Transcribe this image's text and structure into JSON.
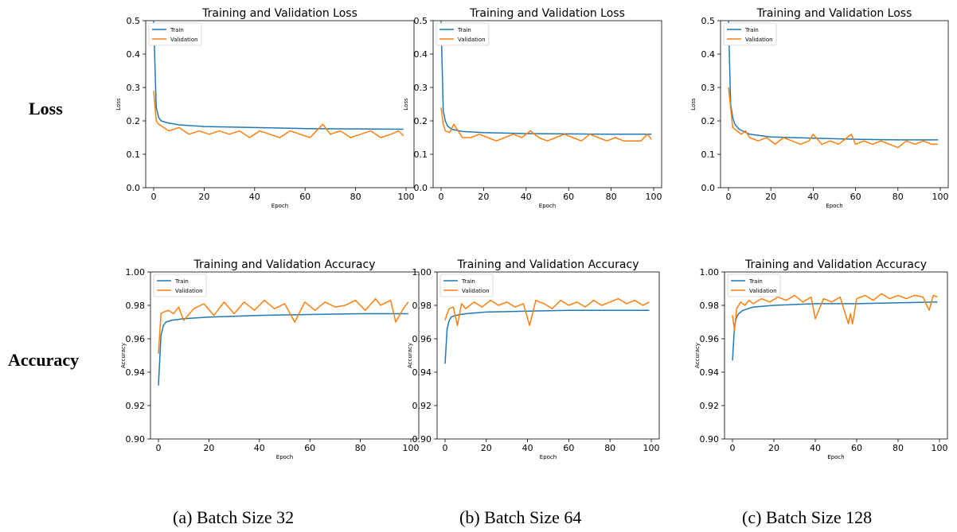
{
  "row_labels": {
    "loss": "Loss",
    "accuracy": "Accuracy"
  },
  "captions": [
    "(a) Batch Size 32",
    "(b) Batch Size 64",
    "(c) Batch Size 128"
  ],
  "colors": {
    "train": "#1f77b4",
    "validation": "#ff7f0e"
  },
  "chart_data": [
    {
      "type": "line",
      "metric": "loss",
      "batch": "32",
      "title": "Training and Validation Loss",
      "xlabel": "Epoch",
      "ylabel": "Loss",
      "xlim": [
        0,
        100
      ],
      "ylim": [
        0.0,
        0.5
      ],
      "xticks": [
        "0",
        "20",
        "40",
        "60",
        "80",
        "100"
      ],
      "yticks": [
        "0.0",
        "0.1",
        "0.2",
        "0.3",
        "0.4",
        "0.5"
      ],
      "legend": "top-left",
      "series": [
        {
          "name": "Train",
          "x": [
            0,
            1,
            2,
            3,
            5,
            10,
            20,
            40,
            60,
            80,
            99
          ],
          "y": [
            0.5,
            0.24,
            0.21,
            0.2,
            0.195,
            0.188,
            0.183,
            0.18,
            0.177,
            0.176,
            0.175
          ]
        },
        {
          "name": "Validation",
          "x": [
            0,
            1,
            2,
            4,
            6,
            10,
            14,
            18,
            22,
            26,
            30,
            34,
            38,
            42,
            46,
            50,
            54,
            58,
            62,
            67,
            70,
            74,
            78,
            82,
            86,
            90,
            94,
            97,
            99
          ],
          "y": [
            0.29,
            0.2,
            0.19,
            0.18,
            0.17,
            0.18,
            0.16,
            0.17,
            0.16,
            0.17,
            0.16,
            0.17,
            0.15,
            0.17,
            0.16,
            0.15,
            0.17,
            0.16,
            0.15,
            0.19,
            0.16,
            0.17,
            0.15,
            0.16,
            0.17,
            0.15,
            0.16,
            0.17,
            0.155
          ]
        }
      ]
    },
    {
      "type": "line",
      "metric": "loss",
      "batch": "64",
      "title": "Training and Validation Loss",
      "xlabel": "Epoch",
      "ylabel": "Loss",
      "xlim": [
        0,
        100
      ],
      "ylim": [
        0.0,
        0.5
      ],
      "xticks": [
        "0",
        "20",
        "40",
        "60",
        "80",
        "100"
      ],
      "yticks": [
        "0.0",
        "0.1",
        "0.2",
        "0.3",
        "0.4",
        "0.5"
      ],
      "legend": "top-left",
      "series": [
        {
          "name": "Train",
          "x": [
            0,
            1,
            2,
            3,
            5,
            10,
            20,
            40,
            60,
            80,
            99
          ],
          "y": [
            0.5,
            0.23,
            0.2,
            0.185,
            0.175,
            0.168,
            0.165,
            0.162,
            0.161,
            0.16,
            0.16
          ]
        },
        {
          "name": "Validation",
          "x": [
            0,
            1,
            2,
            4,
            6,
            10,
            14,
            18,
            22,
            26,
            30,
            34,
            38,
            42,
            46,
            50,
            54,
            58,
            62,
            66,
            70,
            74,
            78,
            82,
            86,
            90,
            94,
            97,
            99
          ],
          "y": [
            0.24,
            0.19,
            0.17,
            0.165,
            0.19,
            0.15,
            0.15,
            0.16,
            0.15,
            0.14,
            0.15,
            0.16,
            0.15,
            0.17,
            0.15,
            0.14,
            0.15,
            0.16,
            0.15,
            0.14,
            0.16,
            0.15,
            0.14,
            0.15,
            0.14,
            0.14,
            0.14,
            0.16,
            0.145
          ]
        }
      ]
    },
    {
      "type": "line",
      "metric": "loss",
      "batch": "128",
      "title": "Training and Validation Loss",
      "xlabel": "Epoch",
      "ylabel": "Loss",
      "xlim": [
        0,
        100
      ],
      "ylim": [
        0.0,
        0.5
      ],
      "xticks": [
        "0",
        "20",
        "40",
        "60",
        "80",
        "100"
      ],
      "yticks": [
        "0.0",
        "0.1",
        "0.2",
        "0.3",
        "0.4",
        "0.5"
      ],
      "legend": "top-left",
      "series": [
        {
          "name": "Train",
          "x": [
            0,
            1,
            2,
            3,
            5,
            10,
            20,
            40,
            60,
            80,
            99
          ],
          "y": [
            0.5,
            0.25,
            0.21,
            0.19,
            0.175,
            0.16,
            0.152,
            0.148,
            0.145,
            0.143,
            0.143
          ]
        },
        {
          "name": "Validation",
          "x": [
            0,
            1,
            2,
            4,
            6,
            8,
            10,
            14,
            18,
            22,
            26,
            30,
            34,
            38,
            40,
            44,
            48,
            52,
            56,
            58,
            60,
            64,
            68,
            72,
            76,
            80,
            84,
            88,
            92,
            96,
            99
          ],
          "y": [
            0.3,
            0.24,
            0.18,
            0.17,
            0.16,
            0.17,
            0.15,
            0.14,
            0.15,
            0.13,
            0.15,
            0.14,
            0.13,
            0.14,
            0.16,
            0.13,
            0.14,
            0.13,
            0.15,
            0.16,
            0.13,
            0.14,
            0.13,
            0.14,
            0.13,
            0.12,
            0.14,
            0.13,
            0.14,
            0.13,
            0.13
          ]
        }
      ]
    },
    {
      "type": "line",
      "metric": "accuracy",
      "batch": "32",
      "title": "Training and Validation Accuracy",
      "xlabel": "Epoch",
      "ylabel": "Accuracy",
      "xlim": [
        0,
        100
      ],
      "ylim": [
        0.9,
        1.0
      ],
      "xticks": [
        "0",
        "20",
        "40",
        "60",
        "80",
        "100"
      ],
      "yticks": [
        "0.90",
        "0.92",
        "0.94",
        "0.96",
        "0.98",
        "1.00"
      ],
      "legend": "top-left",
      "series": [
        {
          "name": "Train",
          "x": [
            0,
            1,
            2,
            3,
            5,
            10,
            20,
            40,
            60,
            80,
            99
          ],
          "y": [
            0.932,
            0.962,
            0.968,
            0.97,
            0.971,
            0.972,
            0.973,
            0.974,
            0.9745,
            0.975,
            0.975
          ]
        },
        {
          "name": "Validation",
          "x": [
            0,
            1,
            2,
            4,
            6,
            8,
            10,
            14,
            18,
            22,
            26,
            30,
            34,
            38,
            42,
            46,
            50,
            54,
            58,
            62,
            66,
            70,
            74,
            78,
            82,
            86,
            88,
            92,
            94,
            97,
            99
          ],
          "y": [
            0.951,
            0.975,
            0.976,
            0.977,
            0.975,
            0.979,
            0.971,
            0.978,
            0.981,
            0.974,
            0.982,
            0.975,
            0.982,
            0.977,
            0.983,
            0.978,
            0.981,
            0.97,
            0.982,
            0.977,
            0.982,
            0.979,
            0.98,
            0.983,
            0.977,
            0.984,
            0.98,
            0.983,
            0.97,
            0.978,
            0.982
          ]
        }
      ]
    },
    {
      "type": "line",
      "metric": "accuracy",
      "batch": "64",
      "title": "Training and Validation Accuracy",
      "xlabel": "Epoch",
      "ylabel": "Accuracy",
      "xlim": [
        0,
        100
      ],
      "ylim": [
        0.9,
        1.0
      ],
      "xticks": [
        "0",
        "20",
        "40",
        "60",
        "80",
        "100"
      ],
      "yticks": [
        "0.90",
        "0.92",
        "0.94",
        "0.96",
        "0.98",
        "1.00"
      ],
      "legend": "top-left",
      "series": [
        {
          "name": "Train",
          "x": [
            0,
            1,
            2,
            3,
            5,
            10,
            20,
            40,
            60,
            80,
            99
          ],
          "y": [
            0.945,
            0.966,
            0.971,
            0.973,
            0.974,
            0.975,
            0.976,
            0.9765,
            0.977,
            0.977,
            0.977
          ]
        },
        {
          "name": "Validation",
          "x": [
            0,
            1,
            2,
            4,
            6,
            8,
            10,
            14,
            18,
            22,
            26,
            30,
            34,
            38,
            41,
            44,
            48,
            52,
            56,
            60,
            64,
            68,
            72,
            76,
            80,
            84,
            88,
            92,
            96,
            99
          ],
          "y": [
            0.971,
            0.975,
            0.978,
            0.979,
            0.968,
            0.981,
            0.978,
            0.982,
            0.979,
            0.983,
            0.98,
            0.982,
            0.979,
            0.981,
            0.968,
            0.983,
            0.981,
            0.978,
            0.983,
            0.98,
            0.982,
            0.979,
            0.983,
            0.98,
            0.982,
            0.984,
            0.981,
            0.983,
            0.98,
            0.982
          ]
        }
      ]
    },
    {
      "type": "line",
      "metric": "accuracy",
      "batch": "128",
      "title": "Training and Validation Accuracy",
      "xlabel": "Epoch",
      "ylabel": "Accuracy",
      "xlim": [
        0,
        100
      ],
      "ylim": [
        0.9,
        1.0
      ],
      "xticks": [
        "0",
        "20",
        "40",
        "60",
        "80",
        "100"
      ],
      "yticks": [
        "0.90",
        "0.92",
        "0.94",
        "0.96",
        "0.98",
        "1.00"
      ],
      "legend": "top-left",
      "series": [
        {
          "name": "Train",
          "x": [
            0,
            1,
            2,
            3,
            5,
            10,
            20,
            40,
            60,
            80,
            99
          ],
          "y": [
            0.947,
            0.968,
            0.973,
            0.975,
            0.977,
            0.979,
            0.98,
            0.981,
            0.981,
            0.9815,
            0.982
          ]
        },
        {
          "name": "Validation",
          "x": [
            0,
            1,
            2,
            4,
            6,
            8,
            10,
            14,
            18,
            22,
            26,
            30,
            34,
            38,
            40,
            44,
            48,
            52,
            56,
            57,
            58,
            60,
            64,
            68,
            72,
            76,
            80,
            84,
            88,
            92,
            95,
            97,
            99
          ],
          "y": [
            0.974,
            0.965,
            0.978,
            0.982,
            0.98,
            0.983,
            0.981,
            0.984,
            0.982,
            0.985,
            0.983,
            0.986,
            0.982,
            0.985,
            0.972,
            0.984,
            0.982,
            0.985,
            0.969,
            0.975,
            0.969,
            0.984,
            0.986,
            0.983,
            0.987,
            0.984,
            0.986,
            0.984,
            0.986,
            0.985,
            0.977,
            0.986,
            0.985
          ]
        }
      ]
    }
  ]
}
